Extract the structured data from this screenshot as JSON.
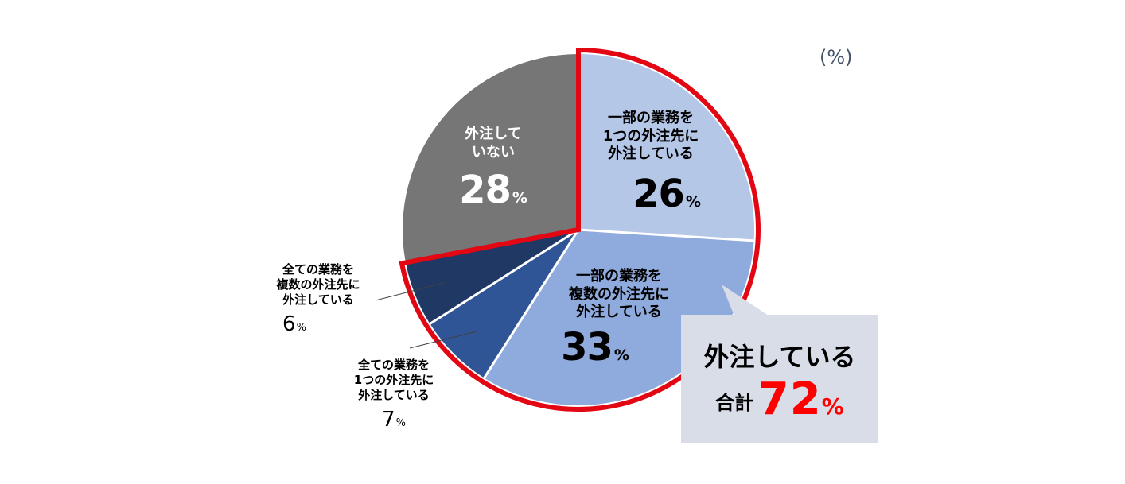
{
  "unit_label": "(%)",
  "callout": {
    "title": "外注している",
    "total_label": "合計",
    "total_value": "72",
    "total_unit": "%"
  },
  "colors": {
    "slice_1": "#b4c7e7",
    "slice_2": "#8faadc",
    "slice_3": "#2f5597",
    "slice_4": "#203864",
    "slice_5": "#767676",
    "outline": "#e30613",
    "callout_bg": "#d9dde7",
    "highlight": "#ff0000"
  },
  "chart_data": {
    "type": "pie",
    "categories": [
      "一部の業務を\n1つの外注先に\n外注している",
      "一部の業務を\n複数の外注先に\n外注している",
      "全ての業務を\n1つの外注先に\n外注している",
      "全ての業務を\n複数の外注先に\n外注している",
      "外注して\nいない"
    ],
    "values": [
      26,
      33,
      7,
      6,
      28
    ],
    "value_labels": [
      "26",
      "33",
      "7",
      "6",
      "28"
    ],
    "value_suffix": "%",
    "highlight_group": {
      "slices": [
        0,
        1,
        2,
        3
      ],
      "total": 72
    }
  }
}
